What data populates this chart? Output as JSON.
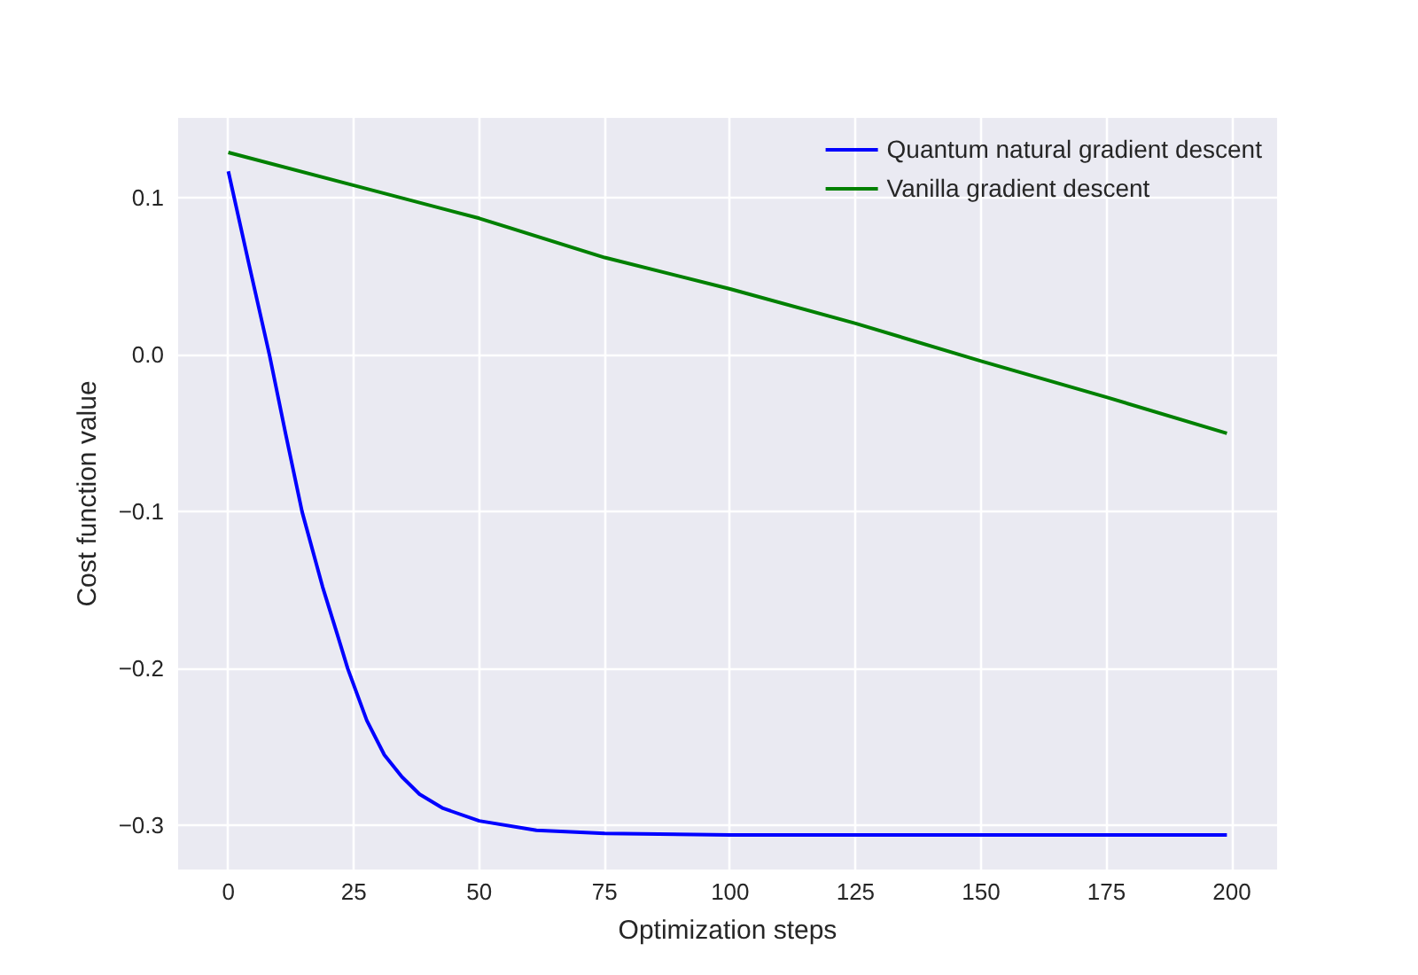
{
  "chart_data": {
    "type": "line",
    "xlabel": "Optimization steps",
    "ylabel": "Cost function value",
    "xlim": [
      -10,
      209
    ],
    "ylim": [
      -0.328,
      0.151
    ],
    "xticks": [
      0,
      25,
      50,
      75,
      100,
      125,
      150,
      175,
      200
    ],
    "yticks": [
      {
        "value": -0.3,
        "label": "−0.3"
      },
      {
        "value": -0.2,
        "label": "−0.2"
      },
      {
        "value": -0.1,
        "label": "−0.1"
      },
      {
        "value": 0.0,
        "label": "0.0"
      },
      0.1
    ],
    "grid": true,
    "legend": "top right",
    "line_style": "solid",
    "series": [
      {
        "name": "Quantum natural gradient descent",
        "color": "#0000ff",
        "x": [
          0,
          4.1,
          8.2,
          11.4,
          14.7,
          18.8,
          21.7,
          23.8,
          27.6,
          31.1,
          34.6,
          38.1,
          42.8,
          50,
          61.4,
          75,
          100,
          150,
          199
        ],
        "values": [
          0.117,
          0.058,
          0.0,
          -0.05,
          -0.1,
          -0.148,
          -0.178,
          -0.2,
          -0.233,
          -0.255,
          -0.269,
          -0.28,
          -0.289,
          -0.297,
          -0.303,
          -0.305,
          -0.306,
          -0.306,
          -0.306
        ]
      },
      {
        "name": "Vanilla gradient descent",
        "color": "#008000",
        "x": [
          0,
          25,
          50,
          75,
          100,
          125,
          150,
          175,
          199
        ],
        "values": [
          0.129,
          0.108,
          0.087,
          0.062,
          0.042,
          0.02,
          -0.004,
          -0.027,
          -0.05
        ]
      }
    ]
  }
}
